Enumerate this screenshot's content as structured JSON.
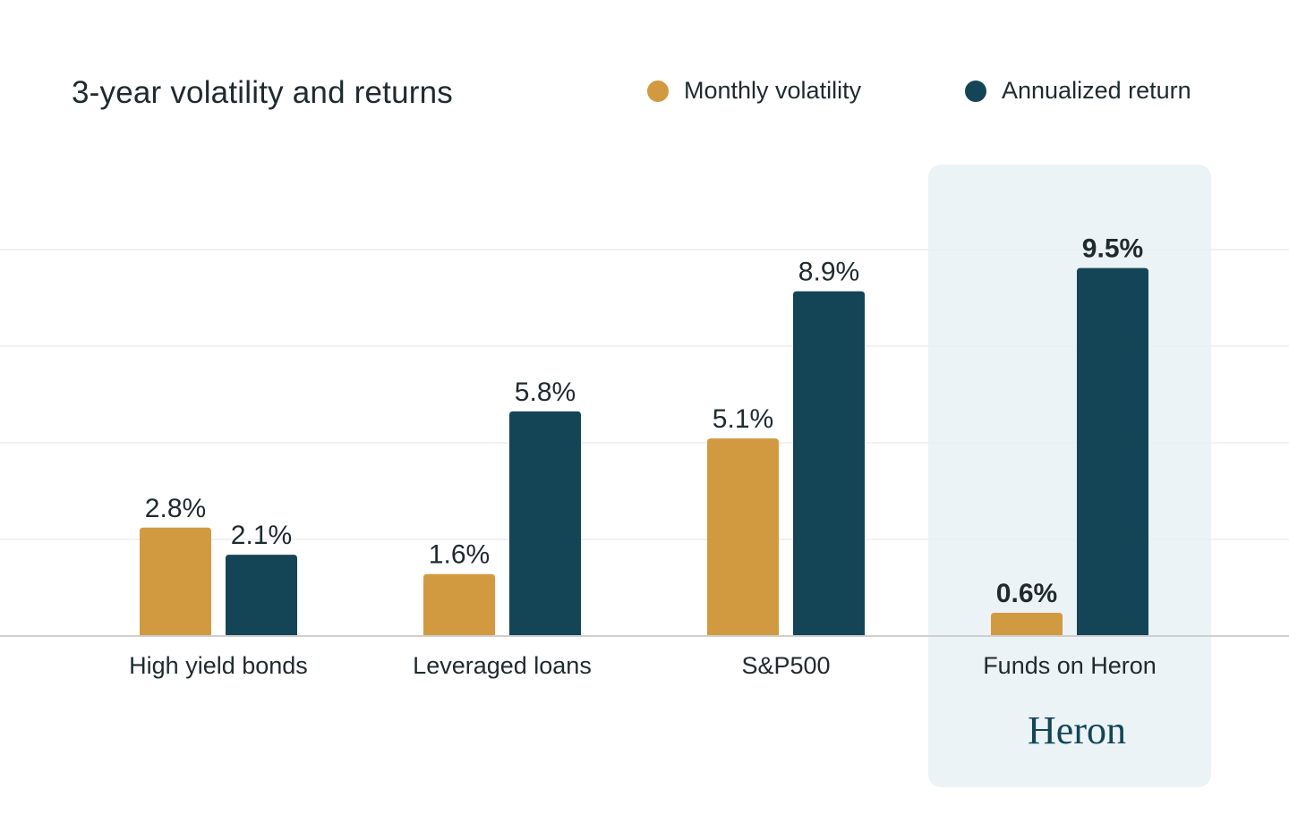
{
  "title": "3-year volatility and returns",
  "colors": {
    "volatility": "#D29A40",
    "return": "#134556",
    "highlight_bg": "#EBF3F6",
    "grid": "#EEEEEE",
    "baseline": "#CFCFCF",
    "text": "#1f2a2e",
    "logo": "#134556"
  },
  "logo": {
    "text": "Heron"
  },
  "chart_data": {
    "type": "bar",
    "title": "3-year volatility and returns",
    "categories": [
      "High yield bonds",
      "Leveraged loans",
      "S&P500",
      "Funds on Heron"
    ],
    "series": [
      {
        "name": "Monthly volatility",
        "values": [
          2.8,
          1.6,
          5.1,
          0.6
        ],
        "labels": [
          "2.8%",
          "1.6%",
          "5.1%",
          "0.6%"
        ]
      },
      {
        "name": "Annualized return",
        "values": [
          2.1,
          5.8,
          8.9,
          9.5
        ],
        "labels": [
          "2.1%",
          "5.8%",
          "8.9%",
          "9.5%"
        ]
      }
    ],
    "highlighted_category": "Funds on Heron",
    "legend_position": "top-right",
    "grid": true,
    "xlabel": "",
    "ylabel": ""
  }
}
